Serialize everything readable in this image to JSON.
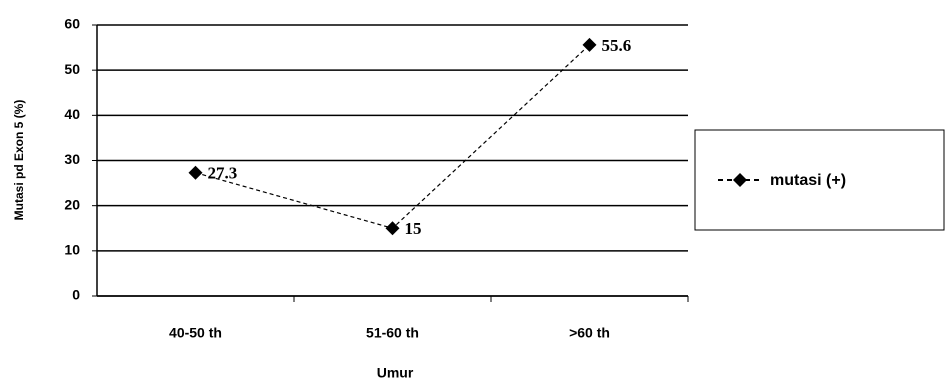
{
  "chart_data": {
    "type": "line",
    "x_label": "Umur",
    "y_label": "Mutasi pd Exon 5 (%)",
    "categories": [
      "40-50 th",
      "51-60 th",
      ">60 th"
    ],
    "series": [
      {
        "name": "mutasi (+)",
        "color": "#000000",
        "values": [
          27.3,
          15,
          55.6
        ]
      }
    ],
    "ylim": [
      0,
      60
    ],
    "yticks": [
      0,
      10,
      20,
      30,
      40,
      50,
      60
    ],
    "grid": true,
    "legend": "right"
  }
}
